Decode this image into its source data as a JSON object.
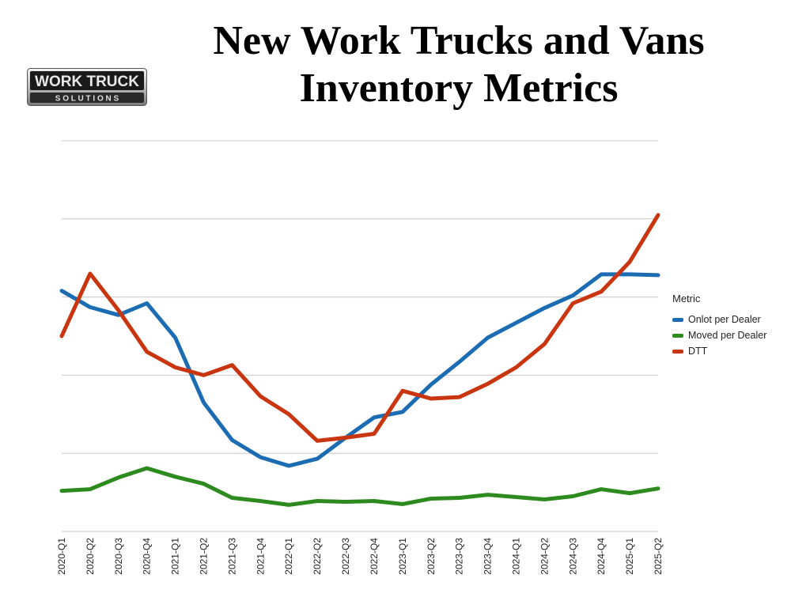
{
  "title_line1": "New Work Trucks and Vans",
  "title_line2": "Inventory Metrics",
  "logo": {
    "line1": "WORK TRUCK",
    "line2": "S O L U T I O N S"
  },
  "legend": {
    "title": "Metric",
    "items": [
      {
        "label": "Onlot per Dealer",
        "color": "#1b6cb3"
      },
      {
        "label": "Moved per Dealer",
        "color": "#2d8a1e"
      },
      {
        "label": "DTT",
        "color": "#c9350f"
      }
    ]
  },
  "chart_data": {
    "type": "line",
    "x": [
      "2020-Q1",
      "2020-Q2",
      "2020-Q3",
      "2020-Q4",
      "2021-Q1",
      "2021-Q2",
      "2021-Q3",
      "2021-Q4",
      "2022-Q1",
      "2022-Q2",
      "2022-Q3",
      "2022-Q4",
      "2023-Q1",
      "2023-Q2",
      "2023-Q3",
      "2023-Q4",
      "2024-Q1",
      "2024-Q2",
      "2024-Q3",
      "2024-Q4",
      "2025-Q1",
      "2025-Q2"
    ],
    "ylim": [
      0,
      5
    ],
    "grid": true,
    "legend_position": "right",
    "series": [
      {
        "name": "Onlot per Dealer",
        "color": "#1b6cb3",
        "values": [
          3.08,
          2.87,
          2.77,
          2.92,
          2.48,
          1.65,
          1.17,
          0.95,
          0.84,
          0.93,
          1.2,
          1.46,
          1.53,
          1.88,
          2.17,
          2.48,
          2.67,
          2.86,
          3.02,
          3.29,
          3.29,
          3.28
        ]
      },
      {
        "name": "Moved per Dealer",
        "color": "#2d8a1e",
        "values": [
          0.52,
          0.54,
          0.69,
          0.81,
          0.7,
          0.61,
          0.43,
          0.39,
          0.34,
          0.39,
          0.38,
          0.39,
          0.35,
          0.42,
          0.43,
          0.47,
          0.44,
          0.41,
          0.45,
          0.54,
          0.49,
          0.55
        ]
      },
      {
        "name": "DTT",
        "color": "#c9350f",
        "values": [
          2.5,
          3.3,
          2.83,
          2.3,
          2.1,
          2.0,
          2.13,
          1.73,
          1.5,
          1.16,
          1.2,
          1.25,
          1.8,
          1.7,
          1.72,
          1.89,
          2.1,
          2.4,
          2.92,
          3.07,
          3.45,
          4.05
        ]
      }
    ]
  }
}
